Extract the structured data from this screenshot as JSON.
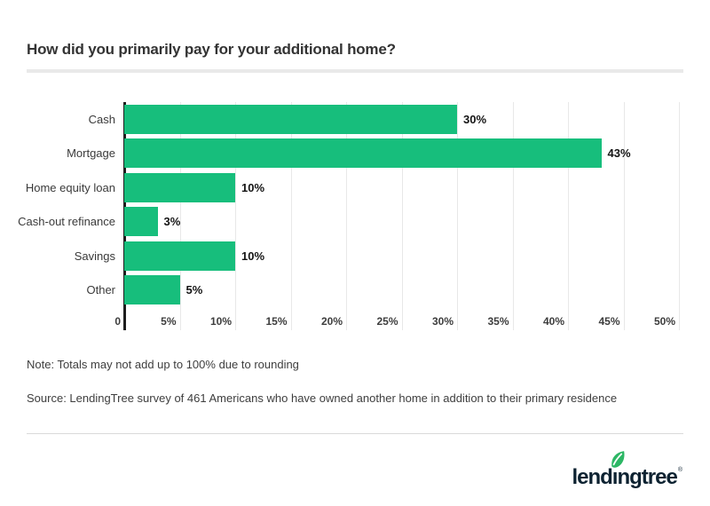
{
  "chart_data": {
    "type": "bar",
    "orientation": "horizontal",
    "title": "How did you primarily pay for your additional home?",
    "categories": [
      "Cash",
      "Mortgage",
      "Home equity loan",
      "Cash-out refinance",
      "Savings",
      "Other"
    ],
    "values": [
      30,
      43,
      10,
      3,
      10,
      5
    ],
    "value_labels": [
      "30%",
      "43%",
      "10%",
      "3%",
      "10%",
      "5%"
    ],
    "xticks": [
      "0",
      "5%",
      "10%",
      "15%",
      "20%",
      "25%",
      "30%",
      "35%",
      "40%",
      "45%",
      "50%"
    ],
    "xlim": [
      0,
      50
    ],
    "xlabel": "",
    "ylabel": "",
    "grid": true,
    "legend": "none",
    "bar_color": "#17be7c"
  },
  "notes": {
    "note": "Note: Totals may not add up to 100% due to rounding",
    "source": "Source: LendingTree survey of 461 Americans who have owned another home in addition to their primary residence"
  },
  "footer": {
    "brand": "lendingtree",
    "brand_part1": "lend",
    "brand_dotless_i": "ı",
    "brand_part2": "ngtree",
    "registered_mark": "®",
    "brand_color": "#0d2231",
    "leaf_color": "#2db765"
  }
}
